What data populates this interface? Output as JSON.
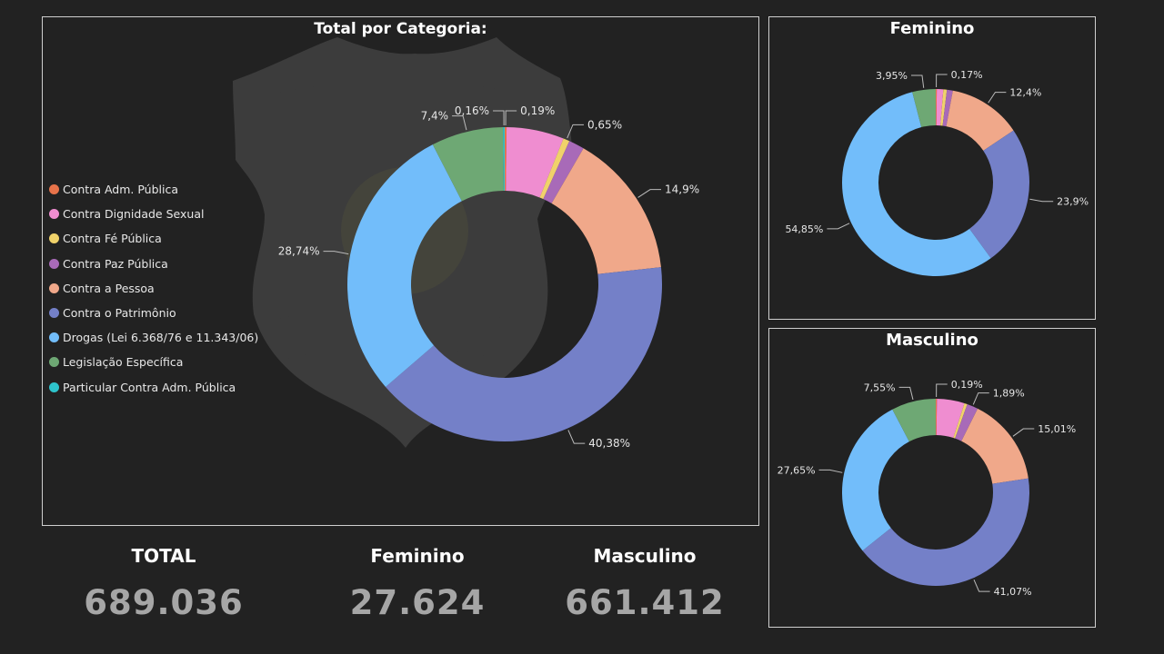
{
  "colors": {
    "Contra Adm. Pública": "#e8734a",
    "Contra Dignidade Sexual": "#ef8dd0",
    "Contra Fé Pública": "#f0d26a",
    "Contra Paz Pública": "#a86ab8",
    "Contra a Pessoa": "#f0a88a",
    "Contra o Patrimônio": "#7480c8",
    "Drogas (Lei 6.368/76 e 11.343/06)": "#72bdfa",
    "Legislação Específica": "#6ea874",
    "Particular Contra Adm. Pública": "#2ec4cc"
  },
  "background_emblem": "departamento-penitenciario-nacional-badge",
  "legend": [
    "Contra Adm. Pública",
    "Contra Dignidade Sexual",
    "Contra Fé Pública",
    "Contra Paz Pública",
    "Contra a Pessoa",
    "Contra o Patrimônio",
    "Drogas (Lei 6.368/76 e 11.343/06)",
    "Legislação Específica",
    "Particular Contra Adm. Pública"
  ],
  "chart_data": [
    {
      "type": "pie",
      "title": "Total por Categoria:",
      "slices": [
        {
          "category": "Contra Adm. Pública",
          "value": 0.19,
          "label": "0,19%"
        },
        {
          "category": "Contra Dignidade Sexual",
          "value": 5.9,
          "label": ""
        },
        {
          "category": "Contra Fé Pública",
          "value": 0.65,
          "label": "0,65%"
        },
        {
          "category": "Contra Paz Pública",
          "value": 1.6,
          "label": ""
        },
        {
          "category": "Contra a Pessoa",
          "value": 14.9,
          "label": "14,9%"
        },
        {
          "category": "Contra o Patrimônio",
          "value": 40.38,
          "label": "40,38%"
        },
        {
          "category": "Drogas (Lei 6.368/76 e 11.343/06)",
          "value": 28.74,
          "label": "28,74%"
        },
        {
          "category": "Legislação Específica",
          "value": 7.4,
          "label": "7,4%"
        },
        {
          "category": "Particular Contra Adm. Pública",
          "value": 0.16,
          "label": "0,16%"
        }
      ]
    },
    {
      "type": "pie",
      "title": "Feminino",
      "slices": [
        {
          "category": "Contra Adm. Pública",
          "value": 0.17,
          "label": "0,17%"
        },
        {
          "category": "Contra Dignidade Sexual",
          "value": 1.1,
          "label": ""
        },
        {
          "category": "Contra Fé Pública",
          "value": 0.6,
          "label": ""
        },
        {
          "category": "Contra Paz Pública",
          "value": 1.0,
          "label": ""
        },
        {
          "category": "Contra a Pessoa",
          "value": 12.4,
          "label": "12,4%"
        },
        {
          "category": "Contra o Patrimônio",
          "value": 23.9,
          "label": "23,9%"
        },
        {
          "category": "Drogas (Lei 6.368/76 e 11.343/06)",
          "value": 54.85,
          "label": "54,85%"
        },
        {
          "category": "Legislação Específica",
          "value": 3.95,
          "label": "3,95%"
        }
      ]
    },
    {
      "type": "pie",
      "title": "Masculino",
      "slices": [
        {
          "category": "Contra Adm. Pública",
          "value": 0.19,
          "label": "0,19%"
        },
        {
          "category": "Contra Dignidade Sexual",
          "value": 4.7,
          "label": ""
        },
        {
          "category": "Contra Fé Pública",
          "value": 0.5,
          "label": ""
        },
        {
          "category": "Contra Paz Pública",
          "value": 1.89,
          "label": "1,89%"
        },
        {
          "category": "Contra a Pessoa",
          "value": 15.01,
          "label": "15,01%"
        },
        {
          "category": "Contra o Patrimônio",
          "value": 41.07,
          "label": "41,07%"
        },
        {
          "category": "Drogas (Lei 6.368/76 e 11.343/06)",
          "value": 27.65,
          "label": "27,65%"
        },
        {
          "category": "Legislação Específica",
          "value": 7.55,
          "label": "7,55%"
        }
      ]
    }
  ],
  "kpis": {
    "total": {
      "label": "TOTAL",
      "value": "689.036"
    },
    "feminino": {
      "label": "Feminino",
      "value": "27.624"
    },
    "masculino": {
      "label": "Masculino",
      "value": "661.412"
    }
  }
}
